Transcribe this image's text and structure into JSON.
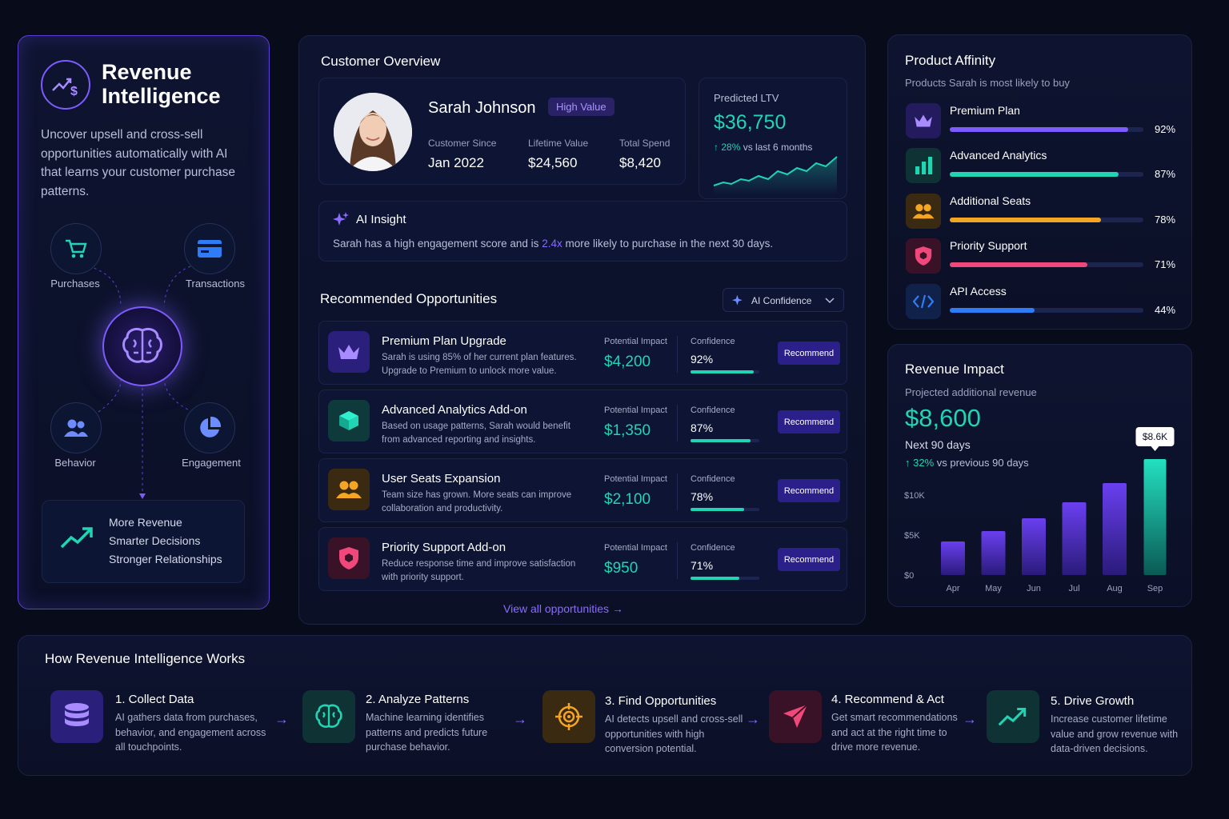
{
  "left": {
    "title_line1": "Revenue",
    "title_line2": "Intelligence",
    "description": "Uncover upsell and cross-sell opportunities automatically with AI that learns your customer purchase patterns.",
    "nodes": [
      {
        "label": "Purchases",
        "icon": "cart-icon"
      },
      {
        "label": "Transactions",
        "icon": "card-icon"
      },
      {
        "label": "Behavior",
        "icon": "users-icon"
      },
      {
        "label": "Engagement",
        "icon": "pie-icon"
      }
    ],
    "outcomes": [
      "More Revenue",
      "Smarter Decisions",
      "Stronger Relationships"
    ]
  },
  "customer": {
    "section_title": "Customer Overview",
    "name": "Sarah Johnson",
    "badge": "High Value",
    "stats": [
      {
        "label": "Customer Since",
        "value": "Jan 2022"
      },
      {
        "label": "Lifetime Value",
        "value": "$24,560"
      },
      {
        "label": "Total Spend",
        "value": "$8,420"
      }
    ],
    "ltv_label": "Predicted LTV",
    "ltv_value": "$36,750",
    "ltv_change": "28%",
    "ltv_change_suffix": "vs last 6 months"
  },
  "insight": {
    "title": "AI Insight",
    "text_before": "Sarah has a high engagement score and is ",
    "highlight": "2.4x",
    "text_after": " more likely to purchase in the next 30 days."
  },
  "opportunities": {
    "section_title": "Recommended Opportunities",
    "filter_label": "AI Confidence",
    "impact_label": "Potential Impact",
    "confidence_label": "Confidence",
    "button_label": "Recommend",
    "items": [
      {
        "title": "Premium Plan Upgrade",
        "desc": "Sarah is using 85% of her current plan features. Upgrade to Premium to unlock more value.",
        "impact": "$4,200",
        "confidence": "92%",
        "confidence_value": 0.92,
        "icon": "crown-icon",
        "color": "#2a1f7a",
        "icon_color": "#a78bff"
      },
      {
        "title": "Advanced Analytics Add-on",
        "desc": "Based on usage patterns, Sarah would benefit from advanced reporting and insights.",
        "impact": "$1,350",
        "confidence": "87%",
        "confidence_value": 0.87,
        "icon": "cube-icon",
        "color": "#0f3a3c",
        "icon_color": "#21d4b4"
      },
      {
        "title": "User Seats Expansion",
        "desc": "Team size has grown. More seats can improve collaboration and productivity.",
        "impact": "$2,100",
        "confidence": "78%",
        "confidence_value": 0.78,
        "icon": "users-icon",
        "color": "#3a2a12",
        "icon_color": "#f5a524"
      },
      {
        "title": "Priority Support Add-on",
        "desc": "Reduce response time and improve satisfaction with priority support.",
        "impact": "$950",
        "confidence": "71%",
        "confidence_value": 0.71,
        "icon": "shield-icon",
        "color": "#3a1228",
        "icon_color": "#f0487a"
      }
    ],
    "view_all": "View all opportunities"
  },
  "affinity": {
    "title": "Product Affinity",
    "subtitle": "Products Sarah is most likely to buy",
    "items": [
      {
        "name": "Premium Plan",
        "pct": "92%",
        "value": 0.92,
        "color": "#7c5cff",
        "bg": "#231b5e",
        "icon": "crown-icon"
      },
      {
        "name": "Advanced Analytics",
        "pct": "87%",
        "value": 0.87,
        "color": "#21d4b4",
        "bg": "#0f3335",
        "icon": "bar-chart-icon"
      },
      {
        "name": "Additional Seats",
        "pct": "78%",
        "value": 0.78,
        "color": "#f5a524",
        "bg": "#3a2a12",
        "icon": "users-icon"
      },
      {
        "name": "Priority Support",
        "pct": "71%",
        "value": 0.71,
        "color": "#f0487a",
        "bg": "#3a1228",
        "icon": "shield-icon"
      },
      {
        "name": "API Access",
        "pct": "44%",
        "value": 0.44,
        "color": "#2f7df6",
        "bg": "#11224a",
        "icon": "code-icon"
      }
    ]
  },
  "revenue": {
    "title": "Revenue Impact",
    "subtitle": "Projected additional revenue",
    "value": "$8,600",
    "period": "Next 90 days",
    "change": "32%",
    "change_suffix": "vs previous 90 days",
    "tooltip": "$8.6K"
  },
  "chart_data": {
    "type": "bar",
    "categories": [
      "Apr",
      "May",
      "Jun",
      "Jul",
      "Aug",
      "Sep"
    ],
    "values": [
      4.2,
      5.5,
      7.1,
      9.1,
      11.5,
      14.5
    ],
    "ylim": [
      0,
      15
    ],
    "yticks": [
      {
        "v": 0,
        "label": "$0"
      },
      {
        "v": 5,
        "label": "$5K"
      },
      {
        "v": 10,
        "label": "$10K"
      }
    ],
    "highlight_label": "$8.6K",
    "grid": false
  },
  "how": {
    "title": "How Revenue Intelligence Works",
    "steps": [
      {
        "title": "1. Collect Data",
        "desc": "AI gathers data from purchases, behavior, and engagement across all touchpoints.",
        "icon": "database-icon"
      },
      {
        "title": "2. Analyze Patterns",
        "desc": "Machine learning identifies patterns and predicts future purchase behavior.",
        "icon": "brain-icon"
      },
      {
        "title": "3. Find Opportunities",
        "desc": "AI detects upsell and cross-sell opportunities with high conversion potential.",
        "icon": "target-icon"
      },
      {
        "title": "4. Recommend & Act",
        "desc": "Get smart recommendations and act at the right time to drive more revenue.",
        "icon": "send-icon"
      },
      {
        "title": "5. Drive Growth",
        "desc": "Increase customer lifetime value and grow revenue with data-driven decisions.",
        "icon": "trend-up-icon"
      }
    ]
  }
}
